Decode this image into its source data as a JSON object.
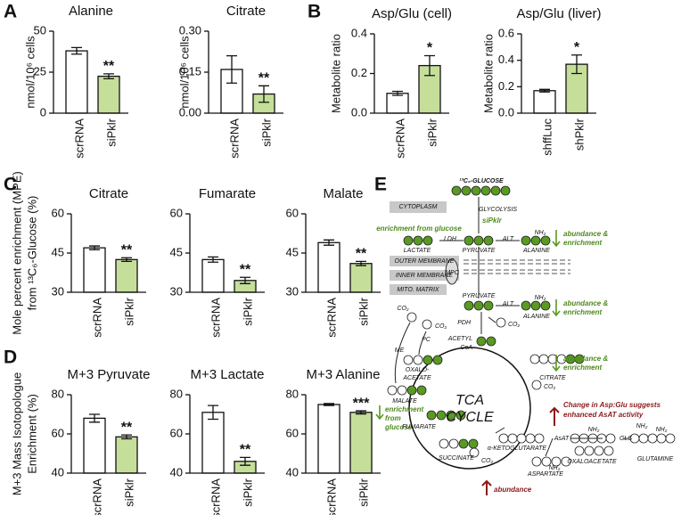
{
  "panels": [
    "A",
    "B",
    "C",
    "D",
    "E"
  ],
  "chart_data": [
    {
      "type": "bar",
      "title": "Alanine",
      "ylabel": [
        "nmol/10⁶ cells"
      ],
      "categories": [
        "scrRNA",
        "siPklr"
      ],
      "values": [
        38,
        22.5
      ],
      "errors": [
        2,
        1.5
      ],
      "colors": [
        "#ffffff",
        "#c5df9b"
      ],
      "significance": "**",
      "ylim": [
        0,
        50
      ],
      "yticks": [
        0,
        25,
        50
      ]
    },
    {
      "type": "bar",
      "title": "Citrate",
      "ylabel": [
        "nmol/10⁶ cells"
      ],
      "categories": [
        "scrRNA",
        "siPklr"
      ],
      "values": [
        0.16,
        0.07
      ],
      "errors": [
        0.05,
        0.03
      ],
      "colors": [
        "#ffffff",
        "#c5df9b"
      ],
      "significance": "**",
      "ylim": [
        0,
        0.3
      ],
      "yticks": [
        {
          "value": 0,
          "label": "0.00"
        },
        {
          "value": 0.15,
          "label": "0.15"
        },
        {
          "value": 0.3,
          "label": "0.30"
        }
      ]
    },
    {
      "type": "bar",
      "title": "Asp/Glu (cell)",
      "ylabel": [
        "Metabolite ratio"
      ],
      "categories": [
        "scrRNA",
        "siPklr"
      ],
      "values": [
        0.1,
        0.24
      ],
      "errors": [
        0.01,
        0.05
      ],
      "colors": [
        "#ffffff",
        "#c5df9b"
      ],
      "significance": "*",
      "ylim": [
        0,
        0.4
      ],
      "yticks": [
        {
          "value": 0,
          "label": "0.0"
        },
        {
          "value": 0.2,
          "label": "0.2"
        },
        {
          "value": 0.4,
          "label": "0.4"
        }
      ]
    },
    {
      "type": "bar",
      "title": "Asp/Glu (liver)",
      "ylabel": [
        "Metabolite ratio"
      ],
      "categories": [
        "shffLuc",
        "shPklr"
      ],
      "values": [
        0.17,
        0.37
      ],
      "errors": [
        0.01,
        0.07
      ],
      "colors": [
        "#ffffff",
        "#c5df9b"
      ],
      "significance": "*",
      "ylim": [
        0,
        0.6
      ],
      "yticks": [
        {
          "value": 0,
          "label": "0.0"
        },
        {
          "value": 0.2,
          "label": "0.2"
        },
        {
          "value": 0.4,
          "label": "0.4"
        },
        {
          "value": 0.6,
          "label": "0.6"
        }
      ]
    },
    {
      "type": "bar",
      "title": "Citrate",
      "ylabel": [
        "Mole percent enrichment (MPE)",
        "from ¹³C₆-Glucose (%)"
      ],
      "categories": [
        "scrRNA",
        "siPklr"
      ],
      "values": [
        47,
        42.5
      ],
      "errors": [
        0.7,
        0.7
      ],
      "colors": [
        "#ffffff",
        "#c5df9b"
      ],
      "significance": "**",
      "ylim": [
        30,
        60
      ],
      "yticks": [
        30,
        45,
        60
      ]
    },
    {
      "type": "bar",
      "title": "Fumarate",
      "categories": [
        "scrRNA",
        "siPklr"
      ],
      "values": [
        42.5,
        34.5
      ],
      "errors": [
        1,
        1.2
      ],
      "colors": [
        "#ffffff",
        "#c5df9b"
      ],
      "significance": "**",
      "ylim": [
        30,
        60
      ],
      "yticks": [
        30,
        45,
        60
      ]
    },
    {
      "type": "bar",
      "title": "Malate",
      "categories": [
        "scrRNA",
        "siPklr"
      ],
      "values": [
        49,
        41
      ],
      "errors": [
        1,
        0.8
      ],
      "colors": [
        "#ffffff",
        "#c5df9b"
      ],
      "significance": "**",
      "ylim": [
        30,
        60
      ],
      "yticks": [
        30,
        45,
        60
      ]
    },
    {
      "type": "bar",
      "title": "M+3 Pyruvate",
      "ylabel": [
        "M+3 Mass Isotopologue",
        "Enrichment (%)"
      ],
      "categories": [
        "scrRNA",
        "siPklr"
      ],
      "values": [
        68,
        58.5
      ],
      "errors": [
        2,
        1
      ],
      "colors": [
        "#ffffff",
        "#c5df9b"
      ],
      "significance": "**",
      "ylim": [
        40,
        80
      ],
      "yticks": [
        40,
        60,
        80
      ]
    },
    {
      "type": "bar",
      "title": "M+3 Lactate",
      "categories": [
        "scrRNA",
        "siPklr"
      ],
      "values": [
        71,
        46
      ],
      "errors": [
        3.5,
        2
      ],
      "colors": [
        "#ffffff",
        "#c5df9b"
      ],
      "significance": "**",
      "ylim": [
        40,
        80
      ],
      "yticks": [
        40,
        60,
        80
      ]
    },
    {
      "type": "bar",
      "title": "M+3 Alanine",
      "categories": [
        "scrRNA",
        "siPklr"
      ],
      "values": [
        75,
        71
      ],
      "errors": [
        0.5,
        0.8
      ],
      "colors": [
        "#ffffff",
        "#c5df9b"
      ],
      "significance": "***",
      "ylim": [
        40,
        80
      ],
      "yticks": [
        40,
        60,
        80
      ]
    }
  ],
  "diagram": {
    "glucose": "¹³C₆-GLUCOSE",
    "glycolysis": "GLYCOLYSIS",
    "knockdown": "siPklr",
    "cytoplasm": "CYTOPLASM",
    "outer_membrane": "OUTER MEMBRANE",
    "inner_membrane": "INNER MEMBRANE",
    "matrix": "MITO. MATRIX",
    "mpc": "MPC",
    "lactate": "LACTATE",
    "ldh": "LDH",
    "pyruvate_cyto": "PYRUVATE",
    "alt_cyto": "ALT",
    "alanine_cyto": "ALANINE",
    "pyruvate_mito": "PYRUVATE",
    "alt_mito": "ALT",
    "alanine_mito": "ALANINE",
    "pdh": "PDH",
    "acetyl_coa": [
      "ACETYL",
      "CoA"
    ],
    "pc": "PC",
    "me": "ME",
    "oxaloacetate_tca": [
      "OXALO-",
      "ACETATE"
    ],
    "citrate": "CITRATE",
    "tca": [
      "TCA",
      "CYCLE"
    ],
    "malate": "MALATE",
    "fumarate": "FUMARATE",
    "succinate": "SUCCINATE",
    "akg": "α-KETOGLUTARATE",
    "asat": "AsAT",
    "gls": "GLS",
    "glutamine": "GLUTAMINE",
    "oxaloacetate": "OXALOACETATE",
    "aspartate": "ASPARTATE",
    "co2": "CO₂",
    "nh2": "NH₂",
    "notes": {
      "enrichment_top": "enrichment from glucose",
      "abundance_enrichment": [
        "abundance &",
        "enrichment"
      ],
      "enrichment_low": [
        "enrichment",
        "from",
        "glucose"
      ],
      "asp_glu": [
        "Change in Asp:Glu suggests",
        "enhanced AsAT activity"
      ],
      "abundance": "abundance"
    }
  }
}
